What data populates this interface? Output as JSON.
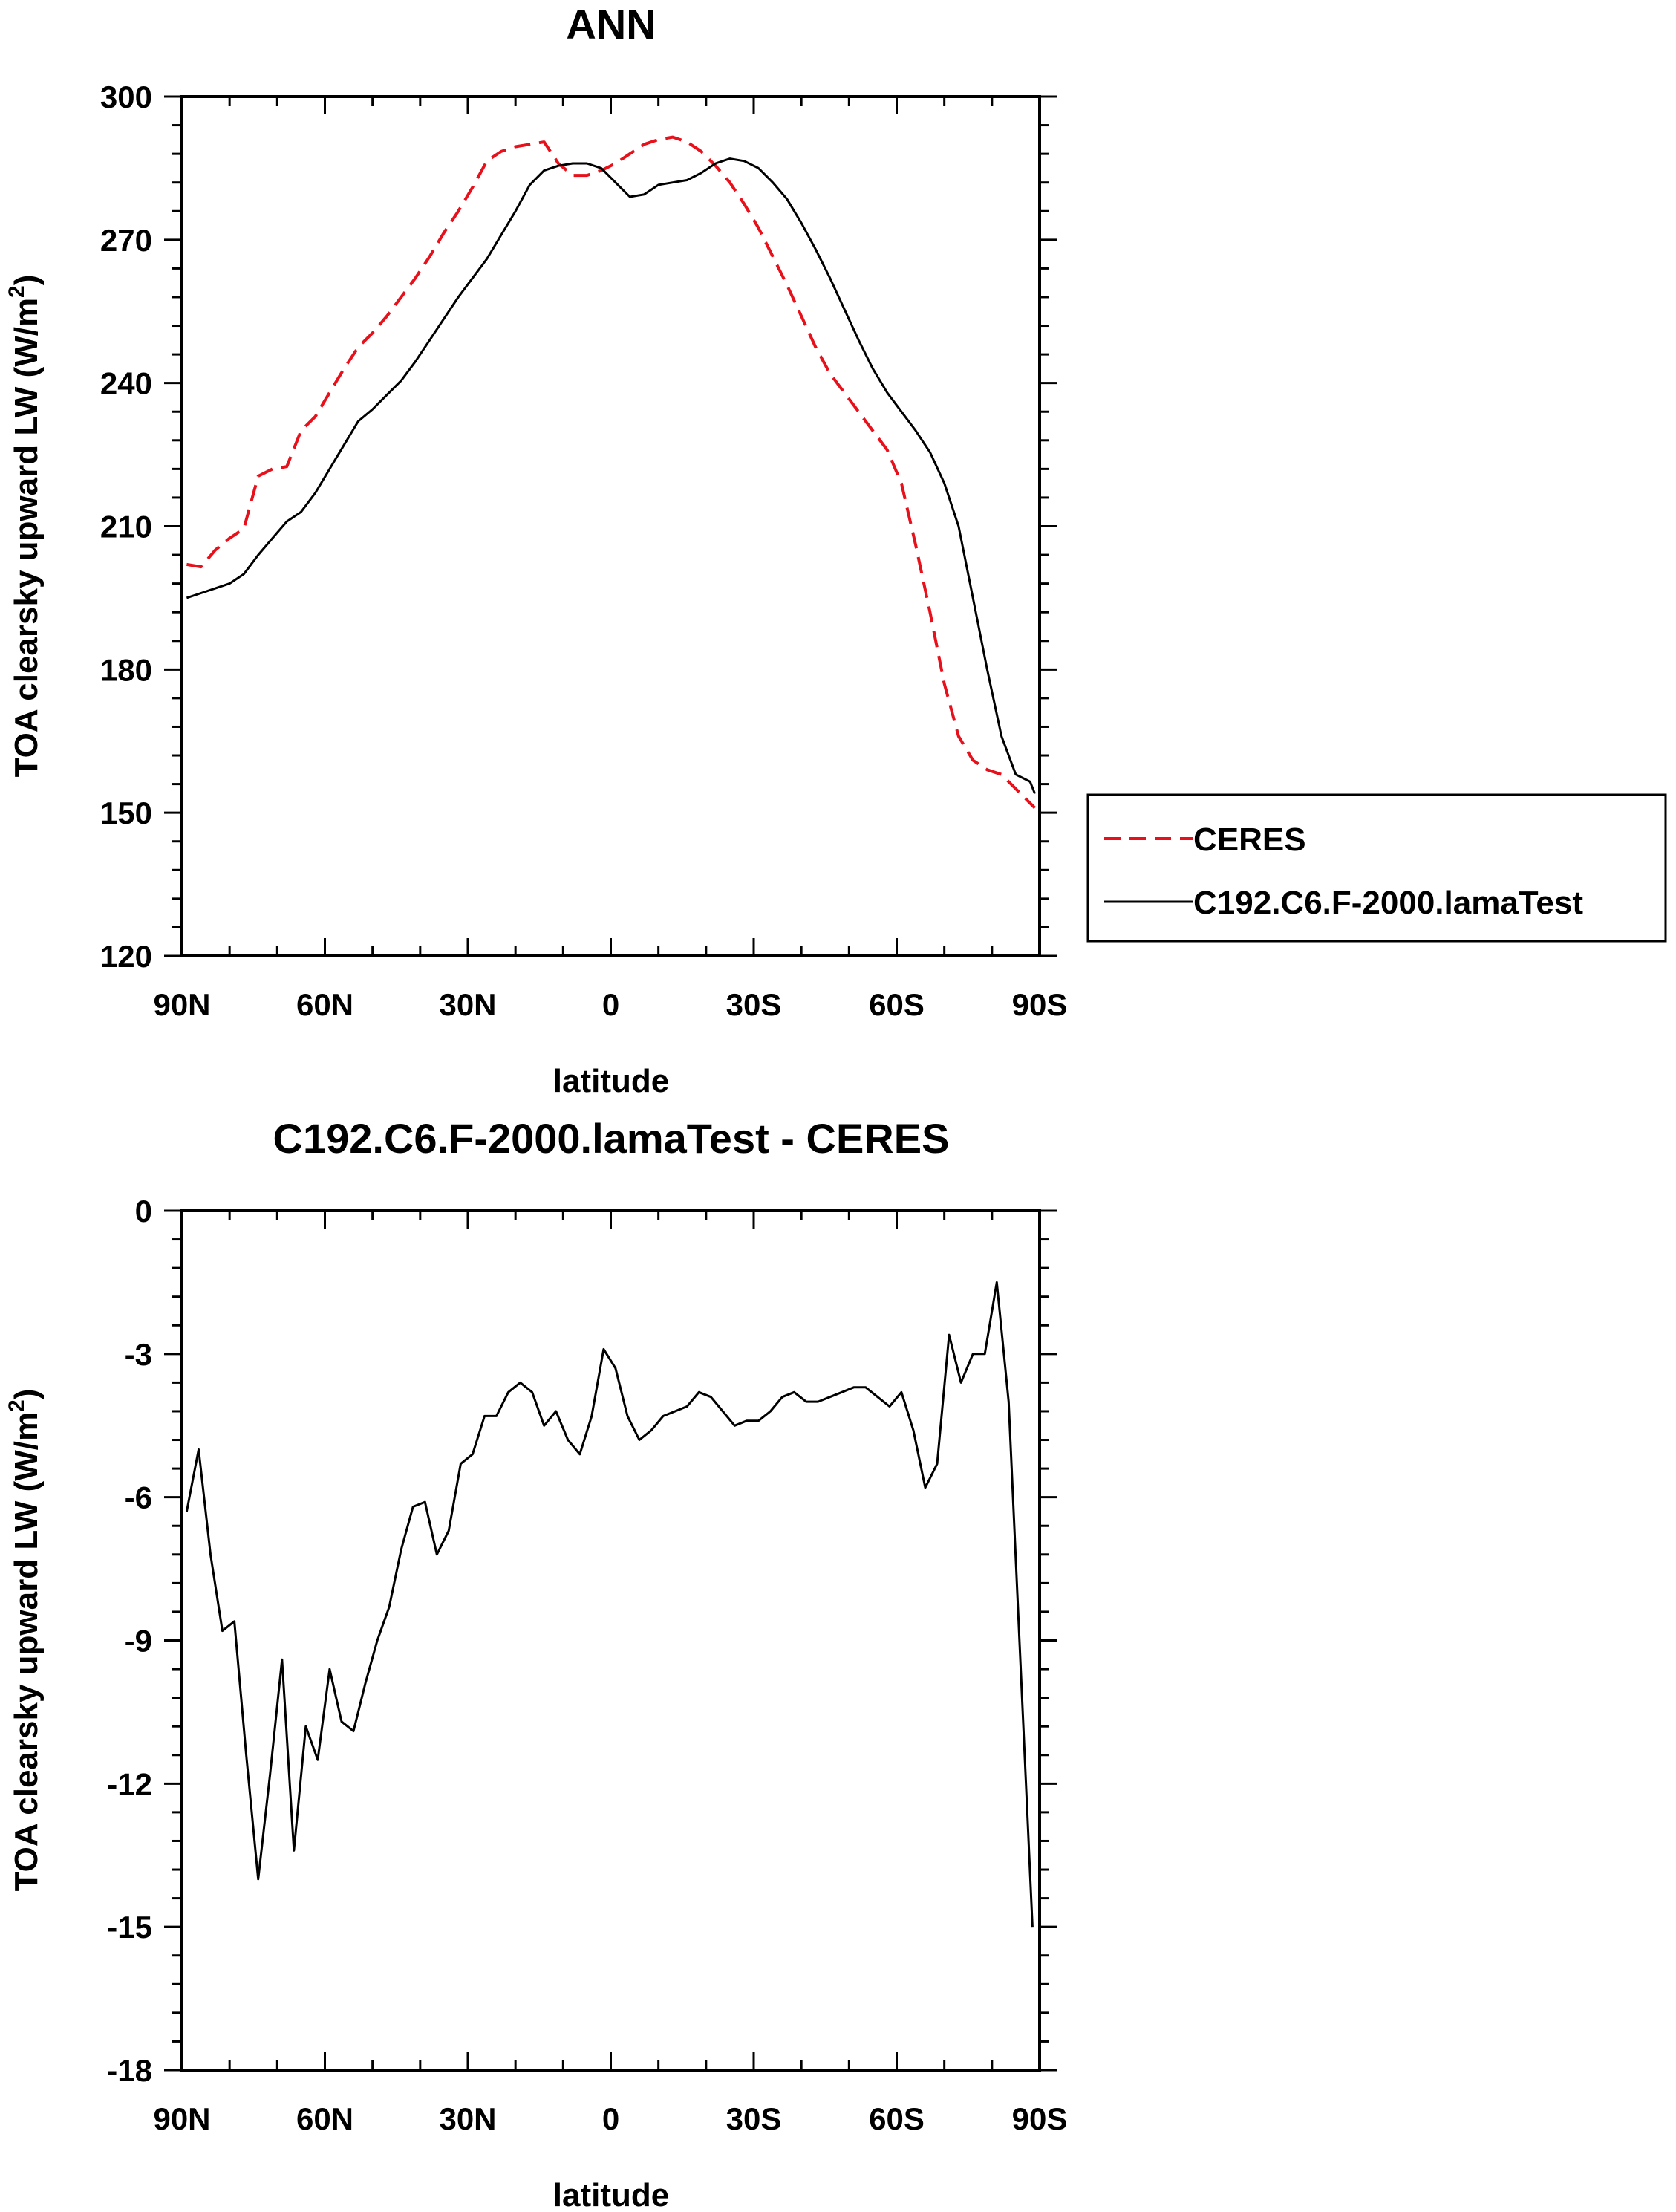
{
  "chart_data": [
    {
      "type": "line",
      "title": "ANN",
      "xlabel": "latitude",
      "ylabel": "TOA clearsky upward LW (W/m",
      "ylabel_sup": "2",
      "ylabel_tail": ")",
      "xlim": [
        90,
        -90
      ],
      "ylim": [
        120,
        300
      ],
      "xticks": [
        90,
        60,
        30,
        0,
        -30,
        -60,
        -90
      ],
      "xtick_labels": [
        "90N",
        "60N",
        "30N",
        "0",
        "30S",
        "60S",
        "90S"
      ],
      "yticks": [
        120,
        150,
        180,
        210,
        240,
        270,
        300
      ],
      "ytick_labels": [
        "120",
        "150",
        "180",
        "210",
        "240",
        "270",
        "300"
      ],
      "legend_position": "right",
      "series": [
        {
          "name": "CERES",
          "color": "#e8101a",
          "style": "dashed",
          "x": [
            89,
            86,
            83,
            80,
            77,
            74,
            71,
            68,
            65,
            62,
            59,
            56,
            53,
            50,
            47,
            44,
            41,
            38,
            35,
            32,
            29,
            26,
            23,
            20,
            17,
            14,
            11,
            8,
            5,
            2,
            -1,
            -4,
            -7,
            -10,
            -13,
            -16,
            -19,
            -22,
            -25,
            -28,
            -31,
            -34,
            -37,
            -40,
            -43,
            -46,
            -49,
            -52,
            -55,
            -58,
            -61,
            -64,
            -67,
            -70,
            -73,
            -76,
            -79,
            -82,
            -85,
            -88,
            -89
          ],
          "values": [
            202,
            201.5,
            205,
            207.5,
            209.5,
            220.5,
            222,
            222.5,
            230,
            233,
            238,
            243,
            247.5,
            250.5,
            254,
            258,
            262,
            266.5,
            271.5,
            276,
            281,
            286.5,
            288.5,
            289.5,
            290,
            290.5,
            286,
            283.5,
            283.5,
            284.5,
            286,
            288,
            290,
            291,
            291.5,
            290.5,
            288.5,
            285.5,
            282,
            277.5,
            272.5,
            266.5,
            260.5,
            254,
            247.5,
            242,
            238,
            234,
            230,
            226,
            219,
            206,
            192,
            177,
            166,
            161,
            159,
            158,
            155,
            152,
            151
          ]
        },
        {
          "name": "C192.C6.F-2000.lamaTest",
          "color": "#000000",
          "style": "solid",
          "x": [
            89,
            86,
            83,
            80,
            77,
            74,
            71,
            68,
            65,
            62,
            59,
            56,
            53,
            50,
            47,
            44,
            41,
            38,
            35,
            32,
            29,
            26,
            23,
            20,
            17,
            14,
            11,
            8,
            5,
            2,
            -1,
            -4,
            -7,
            -10,
            -13,
            -16,
            -19,
            -22,
            -25,
            -28,
            -31,
            -34,
            -37,
            -40,
            -43,
            -46,
            -49,
            -52,
            -55,
            -58,
            -61,
            -64,
            -67,
            -70,
            -73,
            -76,
            -79,
            -82,
            -85,
            -88,
            -89
          ],
          "values": [
            195,
            196,
            197,
            198,
            200,
            204,
            207.5,
            211,
            213,
            217,
            222,
            227,
            232,
            234.5,
            237.5,
            240.5,
            244.5,
            249,
            253.5,
            258,
            262,
            266,
            271,
            276,
            281.5,
            284.5,
            285.5,
            286,
            286,
            285,
            282,
            279,
            279.5,
            281.5,
            282,
            282.5,
            284,
            286,
            287,
            286.5,
            285,
            282,
            278.5,
            273.5,
            268,
            262,
            255.5,
            249,
            243,
            238,
            234,
            230,
            225.5,
            219,
            210,
            195,
            180,
            166,
            158,
            156.5,
            154
          ]
        }
      ]
    },
    {
      "type": "line",
      "title": "C192.C6.F-2000.lamaTest - CERES",
      "xlabel": "latitude",
      "ylabel": "TOA clearsky upward LW (W/m",
      "ylabel_sup": "2",
      "ylabel_tail": ")",
      "xlim": [
        90,
        -90
      ],
      "ylim": [
        -18,
        0
      ],
      "xticks": [
        90,
        60,
        30,
        0,
        -30,
        -60,
        -90
      ],
      "xtick_labels": [
        "90N",
        "60N",
        "30N",
        "0",
        "30S",
        "60S",
        "90S"
      ],
      "yticks": [
        0,
        -3,
        -6,
        -9,
        -12,
        -15,
        -18
      ],
      "ytick_labels": [
        "0",
        "-3",
        "-6",
        "-9",
        "-12",
        "-15",
        "-18"
      ],
      "series": [
        {
          "name": "C192.C6.F-2000.lamaTest - CERES",
          "color": "#000000",
          "style": "solid",
          "x": [
            89,
            86.5,
            84,
            81.5,
            79,
            76.5,
            74,
            71.5,
            69,
            66.5,
            64,
            61.5,
            59,
            56.5,
            54,
            51.5,
            49,
            46.5,
            44,
            41.5,
            39,
            36.5,
            34,
            31.5,
            29,
            26.5,
            24,
            21.5,
            19,
            16.5,
            14,
            11.5,
            9,
            6.5,
            4,
            1.5,
            -1,
            -3.5,
            -6,
            -8.5,
            -11,
            -13.5,
            -16,
            -18.5,
            -21,
            -23.5,
            -26,
            -28.5,
            -31,
            -33.5,
            -36,
            -38.5,
            -41,
            -43.5,
            -46,
            -48.5,
            -51,
            -53.5,
            -56,
            -58.5,
            -61,
            -63.5,
            -66,
            -68.5,
            -71,
            -73.5,
            -76,
            -78.5,
            -81,
            -83.5,
            -86,
            -88.5
          ],
          "values": [
            -6.3,
            -5.0,
            -7.2,
            -8.8,
            -8.6,
            -11.4,
            -14.0,
            -11.8,
            -9.4,
            -13.4,
            -10.8,
            -11.5,
            -9.6,
            -10.7,
            -10.9,
            -9.9,
            -9.0,
            -8.3,
            -7.1,
            -6.2,
            -6.1,
            -7.2,
            -6.7,
            -5.3,
            -5.1,
            -4.3,
            -4.3,
            -3.8,
            -3.6,
            -3.8,
            -4.5,
            -4.2,
            -4.8,
            -5.1,
            -4.3,
            -2.9,
            -3.3,
            -4.3,
            -4.8,
            -4.6,
            -4.3,
            -4.2,
            -4.1,
            -3.8,
            -3.9,
            -4.2,
            -4.5,
            -4.4,
            -4.4,
            -4.2,
            -3.9,
            -3.8,
            -4.0,
            -4.0,
            -3.9,
            -3.8,
            -3.7,
            -3.7,
            -3.9,
            -4.1,
            -3.8,
            -4.6,
            -5.8,
            -5.3,
            -2.6,
            -3.6,
            -3.0,
            -3.0,
            -1.5,
            -4.0,
            -9.5,
            -15.0
          ]
        }
      ]
    }
  ]
}
